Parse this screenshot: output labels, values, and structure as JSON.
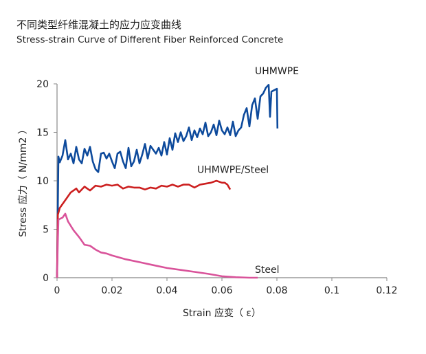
{
  "chart_data": {
    "type": "line",
    "title": "不同类型纤维混凝土的应力应变曲线",
    "subtitle": "Stress-strain Curve of Different Fiber Reinforced Concrete",
    "xlabel": "Strain 应变（ ε）",
    "ylabel": "Stress 应力（ N/mm2 ）",
    "xlim": [
      0,
      0.12
    ],
    "ylim": [
      0,
      20
    ],
    "xticks": [
      0,
      0.02,
      0.04,
      0.06,
      0.08,
      0.1,
      0.12
    ],
    "xtick_labels": [
      "0",
      "0.02",
      "0.04",
      "0.06",
      "0.08",
      "0.1",
      "0.12"
    ],
    "yticks": [
      0,
      5,
      10,
      15,
      20
    ],
    "ytick_labels": [
      "0",
      "5",
      "10",
      "15",
      "20"
    ],
    "grid": false,
    "series": [
      {
        "name": "UHMWPE",
        "color": "#0d4a9c",
        "points": [
          [
            0,
            0
          ],
          [
            0.0005,
            12.5
          ],
          [
            0.001,
            11.9
          ],
          [
            0.002,
            12.6
          ],
          [
            0.003,
            14.2
          ],
          [
            0.004,
            12.2
          ],
          [
            0.005,
            12.8
          ],
          [
            0.006,
            11.8
          ],
          [
            0.007,
            13.5
          ],
          [
            0.008,
            12.2
          ],
          [
            0.009,
            11.8
          ],
          [
            0.01,
            13.3
          ],
          [
            0.011,
            12.6
          ],
          [
            0.012,
            13.5
          ],
          [
            0.013,
            12.0
          ],
          [
            0.014,
            11.2
          ],
          [
            0.015,
            10.9
          ],
          [
            0.016,
            12.8
          ],
          [
            0.017,
            12.9
          ],
          [
            0.018,
            12.3
          ],
          [
            0.019,
            12.8
          ],
          [
            0.02,
            12.0
          ],
          [
            0.021,
            11.3
          ],
          [
            0.022,
            12.8
          ],
          [
            0.023,
            13.0
          ],
          [
            0.024,
            12.0
          ],
          [
            0.025,
            11.3
          ],
          [
            0.026,
            13.4
          ],
          [
            0.027,
            11.5
          ],
          [
            0.028,
            12.0
          ],
          [
            0.029,
            13.2
          ],
          [
            0.03,
            11.8
          ],
          [
            0.031,
            12.7
          ],
          [
            0.032,
            13.8
          ],
          [
            0.033,
            12.3
          ],
          [
            0.034,
            13.6
          ],
          [
            0.035,
            13.2
          ],
          [
            0.036,
            12.8
          ],
          [
            0.037,
            13.4
          ],
          [
            0.038,
            12.6
          ],
          [
            0.039,
            14.0
          ],
          [
            0.04,
            12.7
          ],
          [
            0.041,
            14.4
          ],
          [
            0.042,
            13.2
          ],
          [
            0.043,
            14.9
          ],
          [
            0.044,
            14.0
          ],
          [
            0.045,
            15.0
          ],
          [
            0.046,
            14.1
          ],
          [
            0.047,
            14.6
          ],
          [
            0.048,
            15.5
          ],
          [
            0.049,
            14.2
          ],
          [
            0.05,
            15.2
          ],
          [
            0.051,
            14.5
          ],
          [
            0.052,
            15.4
          ],
          [
            0.053,
            14.8
          ],
          [
            0.054,
            16.0
          ],
          [
            0.055,
            14.6
          ],
          [
            0.056,
            15.0
          ],
          [
            0.057,
            15.8
          ],
          [
            0.058,
            14.7
          ],
          [
            0.059,
            16.2
          ],
          [
            0.06,
            15.2
          ],
          [
            0.061,
            14.8
          ],
          [
            0.062,
            15.5
          ],
          [
            0.063,
            14.7
          ],
          [
            0.064,
            16.1
          ],
          [
            0.065,
            14.6
          ],
          [
            0.066,
            15.2
          ],
          [
            0.067,
            15.5
          ],
          [
            0.068,
            16.8
          ],
          [
            0.069,
            17.5
          ],
          [
            0.07,
            15.6
          ],
          [
            0.071,
            17.8
          ],
          [
            0.072,
            18.5
          ],
          [
            0.073,
            16.4
          ],
          [
            0.074,
            18.7
          ],
          [
            0.075,
            19.0
          ],
          [
            0.076,
            19.6
          ],
          [
            0.077,
            19.9
          ],
          [
            0.0775,
            16.6
          ],
          [
            0.078,
            19.2
          ],
          [
            0.08,
            19.5
          ],
          [
            0.0802,
            15.4
          ]
        ]
      },
      {
        "name": "UHMWPE/Steel",
        "color": "#cc1f1f",
        "points": [
          [
            0,
            0
          ],
          [
            0.0003,
            6.5
          ],
          [
            0.001,
            7.2
          ],
          [
            0.003,
            8.0
          ],
          [
            0.005,
            8.8
          ],
          [
            0.007,
            9.2
          ],
          [
            0.008,
            8.8
          ],
          [
            0.01,
            9.4
          ],
          [
            0.012,
            9.0
          ],
          [
            0.014,
            9.5
          ],
          [
            0.016,
            9.4
          ],
          [
            0.018,
            9.6
          ],
          [
            0.02,
            9.5
          ],
          [
            0.022,
            9.6
          ],
          [
            0.024,
            9.2
          ],
          [
            0.026,
            9.4
          ],
          [
            0.028,
            9.3
          ],
          [
            0.03,
            9.3
          ],
          [
            0.032,
            9.1
          ],
          [
            0.034,
            9.3
          ],
          [
            0.036,
            9.2
          ],
          [
            0.038,
            9.5
          ],
          [
            0.04,
            9.4
          ],
          [
            0.042,
            9.6
          ],
          [
            0.044,
            9.4
          ],
          [
            0.046,
            9.6
          ],
          [
            0.048,
            9.6
          ],
          [
            0.05,
            9.3
          ],
          [
            0.052,
            9.6
          ],
          [
            0.054,
            9.7
          ],
          [
            0.056,
            9.8
          ],
          [
            0.058,
            10.0
          ],
          [
            0.06,
            9.8
          ],
          [
            0.061,
            9.8
          ],
          [
            0.062,
            9.6
          ],
          [
            0.063,
            9.1
          ]
        ]
      },
      {
        "name": "Steel",
        "color": "#d9539a",
        "points": [
          [
            0,
            0
          ],
          [
            0.0003,
            4.0
          ],
          [
            0.0005,
            6.0
          ],
          [
            0.002,
            6.2
          ],
          [
            0.003,
            6.6
          ],
          [
            0.004,
            5.8
          ],
          [
            0.006,
            4.9
          ],
          [
            0.008,
            4.2
          ],
          [
            0.01,
            3.4
          ],
          [
            0.012,
            3.3
          ],
          [
            0.014,
            2.9
          ],
          [
            0.016,
            2.6
          ],
          [
            0.018,
            2.5
          ],
          [
            0.02,
            2.3
          ],
          [
            0.025,
            1.9
          ],
          [
            0.03,
            1.6
          ],
          [
            0.035,
            1.3
          ],
          [
            0.04,
            1.0
          ],
          [
            0.045,
            0.8
          ],
          [
            0.05,
            0.6
          ],
          [
            0.055,
            0.4
          ],
          [
            0.06,
            0.15
          ],
          [
            0.065,
            0.05
          ],
          [
            0.07,
            0.0
          ],
          [
            0.073,
            0.0
          ]
        ]
      }
    ],
    "annotations": [
      {
        "text": "UHMWPE",
        "x": 0.072,
        "y": 21
      },
      {
        "text": "UHMWPE/Steel",
        "x": 0.051,
        "y": 10.8
      },
      {
        "text": "Steel",
        "x": 0.072,
        "y": 0.5
      }
    ]
  }
}
